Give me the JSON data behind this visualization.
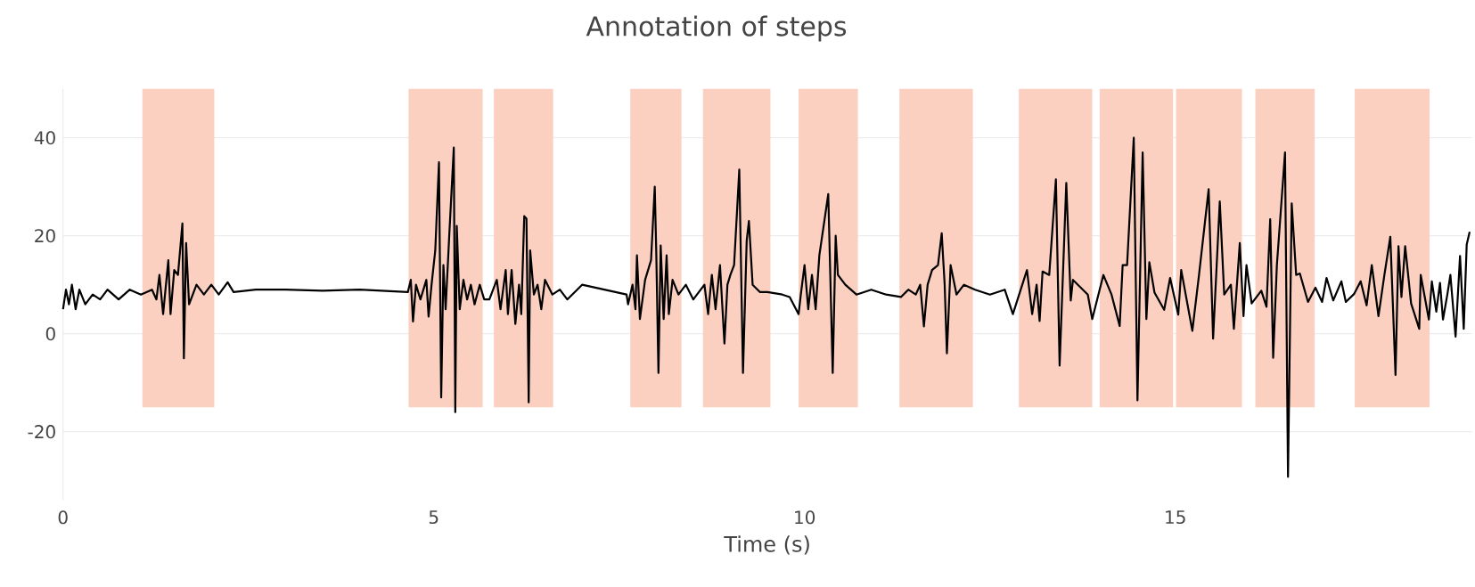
{
  "chart_data": {
    "type": "line",
    "title": "Annotation of steps",
    "xlabel": "Time (s)",
    "x": [
      0.0,
      0.04,
      0.08,
      0.12,
      0.17,
      0.22,
      0.3,
      0.4,
      0.5,
      0.6,
      0.75,
      0.9,
      1.05,
      1.2,
      1.26,
      1.3,
      1.35,
      1.42,
      1.45,
      1.5,
      1.55,
      1.61,
      1.63,
      1.66,
      1.7,
      1.8,
      1.9,
      2.0,
      2.1,
      2.22,
      2.3,
      2.6,
      3.0,
      3.5,
      4.0,
      4.65,
      4.69,
      4.72,
      4.76,
      4.82,
      4.9,
      4.93,
      4.97,
      5.02,
      5.07,
      5.1,
      5.13,
      5.16,
      5.21,
      5.27,
      5.29,
      5.31,
      5.35,
      5.4,
      5.45,
      5.5,
      5.55,
      5.62,
      5.68,
      5.75,
      5.85,
      5.9,
      5.97,
      6.0,
      6.05,
      6.1,
      6.15,
      6.18,
      6.22,
      6.25,
      6.28,
      6.3,
      6.35,
      6.4,
      6.45,
      6.5,
      6.6,
      6.7,
      6.8,
      7.0,
      7.3,
      7.6,
      7.62,
      7.68,
      7.72,
      7.74,
      7.78,
      7.85,
      7.93,
      7.98,
      8.0,
      8.03,
      8.06,
      8.1,
      8.14,
      8.17,
      8.22,
      8.3,
      8.4,
      8.5,
      8.65,
      8.7,
      8.75,
      8.8,
      8.86,
      8.92,
      8.96,
      9.0,
      9.05,
      9.12,
      9.17,
      9.22,
      9.25,
      9.3,
      9.4,
      9.5,
      9.7,
      9.8,
      9.92,
      9.95,
      10.0,
      10.05,
      10.1,
      10.15,
      10.2,
      10.32,
      10.38,
      10.42,
      10.45,
      10.55,
      10.7,
      10.9,
      11.1,
      11.3,
      11.4,
      11.5,
      11.56,
      11.61,
      11.66,
      11.72,
      11.8,
      11.85,
      11.89,
      11.92,
      11.97,
      12.05,
      12.15,
      12.3,
      12.5,
      12.7,
      12.81,
      13.0,
      13.07,
      13.13,
      13.17,
      13.21,
      13.3,
      13.39,
      13.44,
      13.53,
      13.59,
      13.62,
      13.82,
      13.88,
      14.03,
      14.14,
      14.25,
      14.29,
      14.35,
      14.44,
      14.49,
      14.56,
      14.61,
      14.65,
      14.72,
      14.85,
      14.93,
      15.04,
      15.08,
      15.23,
      15.32,
      15.45,
      15.51,
      15.6,
      15.66,
      15.75,
      15.79,
      15.87,
      15.92,
      15.96,
      16.03,
      16.16,
      16.23,
      16.28,
      16.32,
      16.37,
      16.48,
      16.52,
      16.57,
      16.63,
      16.68,
      16.79,
      16.89,
      16.98,
      17.04,
      17.13,
      17.24,
      17.3,
      17.41,
      17.5,
      17.58,
      17.65,
      17.74,
      17.82,
      17.9,
      17.97,
      18.01,
      18.05,
      18.1,
      18.18,
      18.29,
      18.31,
      18.42,
      18.46,
      18.52,
      18.57,
      18.61,
      18.67,
      18.71,
      18.78,
      18.84,
      18.89,
      18.93,
      18.97
    ],
    "series": [
      {
        "color": "#000000",
        "values": [
          5,
          9,
          6,
          10,
          5,
          9,
          6,
          8,
          7,
          9,
          7,
          9,
          8,
          9,
          7,
          12,
          4,
          15,
          4,
          13,
          12,
          22.5,
          -5,
          18.5,
          6,
          10,
          8,
          10,
          8,
          10.5,
          8.5,
          9,
          9,
          8.8,
          9,
          8.5,
          11,
          2.5,
          10,
          7,
          11,
          3.5,
          10,
          17,
          35,
          -13,
          14,
          5,
          20.5,
          38,
          -16,
          22,
          5,
          11,
          7,
          10,
          6,
          10,
          7,
          7,
          11,
          5,
          13,
          4,
          13,
          2,
          10,
          4,
          24,
          23.5,
          -14,
          17,
          8,
          10,
          5,
          11,
          8,
          9,
          7,
          10,
          9,
          8,
          6,
          10,
          5,
          16,
          3,
          11,
          15,
          30,
          17,
          -8,
          18,
          3,
          16,
          4,
          11,
          8,
          10,
          7,
          10,
          4,
          12,
          5,
          14,
          -2,
          10,
          12,
          14,
          33.5,
          -8,
          19,
          23,
          10,
          8.5,
          8.5,
          8,
          7.5,
          4,
          8,
          14,
          5,
          12,
          5,
          16,
          28.5,
          -8,
          20,
          12,
          10,
          8,
          9,
          8,
          7.5,
          9,
          8,
          10,
          1.5,
          10,
          13,
          14,
          20.5,
          10,
          -4,
          14,
          8,
          10,
          9,
          8,
          9,
          4,
          13,
          4,
          10,
          2.6,
          12.7,
          12,
          31.5,
          -6.5,
          30.8,
          6.8,
          11,
          8,
          3,
          12,
          8,
          1.6,
          14,
          14,
          40,
          -13.6,
          37,
          3,
          14.6,
          8.4,
          4.9,
          11.4,
          3.9,
          13,
          0.6,
          12,
          29.5,
          -1,
          27,
          8,
          10,
          1,
          18.5,
          3.6,
          14,
          6.2,
          8.8,
          5.5,
          23.4,
          -4.9,
          14,
          37,
          -29.2,
          26.6,
          12,
          12.3,
          6.5,
          9.4,
          6.5,
          11.4,
          6.8,
          10.7,
          6.5,
          8.1,
          10.7,
          5.8,
          14,
          3.6,
          12,
          19.8,
          -8.4,
          17.9,
          7.5,
          17.9,
          6.2,
          1,
          12,
          2.9,
          10.7,
          4.5,
          10.4,
          2.9,
          8.1,
          12,
          -0.6,
          15.9,
          1,
          18.2,
          20.8
        ]
      }
    ],
    "xlim": [
      0,
      19
    ],
    "ylim": [
      -34,
      50
    ],
    "xticks": [
      0,
      5,
      10,
      15
    ],
    "yticks": [
      -20,
      0,
      20,
      40
    ],
    "grid": "y",
    "bands": [
      {
        "axis": "x",
        "from": 1.07,
        "to": 2.04,
        "color": "#fcd0c0"
      },
      {
        "axis": "x",
        "from": 4.66,
        "to": 5.66,
        "color": "#fcd0c0"
      },
      {
        "axis": "x",
        "from": 5.81,
        "to": 6.61,
        "color": "#fcd0c0"
      },
      {
        "axis": "x",
        "from": 7.65,
        "to": 8.34,
        "color": "#fcd0c0"
      },
      {
        "axis": "x",
        "from": 8.63,
        "to": 9.54,
        "color": "#fcd0c0"
      },
      {
        "axis": "x",
        "from": 9.92,
        "to": 10.72,
        "color": "#fcd0c0"
      },
      {
        "axis": "x",
        "from": 11.28,
        "to": 12.27,
        "color": "#fcd0c0"
      },
      {
        "axis": "x",
        "from": 12.89,
        "to": 13.88,
        "color": "#fcd0c0"
      },
      {
        "axis": "x",
        "from": 13.98,
        "to": 14.97,
        "color": "#fcd0c0"
      },
      {
        "axis": "x",
        "from": 15.01,
        "to": 15.9,
        "color": "#fcd0c0"
      },
      {
        "axis": "x",
        "from": 16.08,
        "to": 16.88,
        "color": "#fcd0c0"
      },
      {
        "axis": "x",
        "from": 17.42,
        "to": 18.43,
        "color": "#fcd0c0"
      }
    ]
  }
}
